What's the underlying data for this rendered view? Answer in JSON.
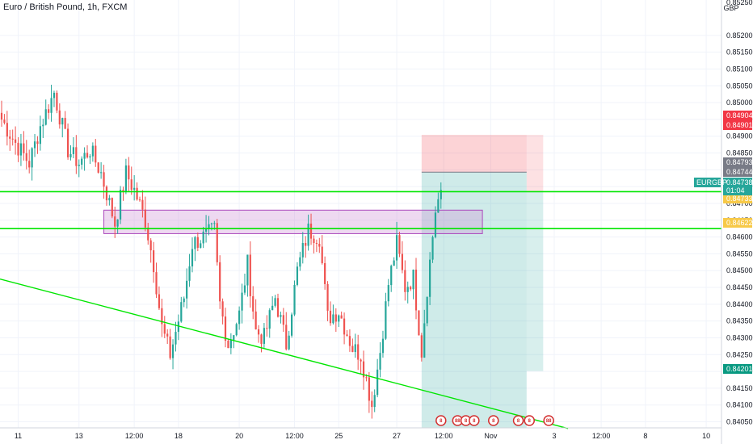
{
  "header": {
    "title": "Euro / British Pound, 1h, FXCM"
  },
  "price_axis": {
    "currency": "GBP",
    "top_label": "0.85250"
  },
  "symbol_tag": {
    "symbol": "EURGBP",
    "price": "0.84738",
    "countdown": "01:04"
  },
  "price_tags": [
    {
      "label": "0.84904",
      "color": "#f23645"
    },
    {
      "label": "0.84901",
      "color": "#f23645"
    },
    {
      "label": "0.84793",
      "color": "#787b86"
    },
    {
      "label": "0.84744",
      "color": "#787b86"
    },
    {
      "label": "0.84733",
      "color": "#f7c948"
    },
    {
      "label": "0.84622",
      "color": "#f7c948"
    },
    {
      "label": "0.84201",
      "color": "#089981"
    }
  ],
  "colors": {
    "up": "#26a69a",
    "down": "#ef5350",
    "level": "#00e600",
    "zone": "#ce93d8",
    "target": "#26a69a",
    "stop": "#f23645"
  },
  "drawings": {
    "horizontal_levels": [
      0.84735,
      0.84625
    ],
    "zone": {
      "from": 0.8461,
      "to": 0.8468
    },
    "trendline": {
      "from_price": 0.84475,
      "to_price": 0.8403
    },
    "position": {
      "entry": 0.84793,
      "stop": 0.84904,
      "target": 0.84201
    }
  },
  "events": [
    {
      "label": "8",
      "kind": "flag"
    },
    {
      "label": "88",
      "kind": "flag"
    },
    {
      "label": "8",
      "kind": "flag"
    },
    {
      "label": "8",
      "kind": "flag"
    },
    {
      "label": "8",
      "kind": "flag"
    },
    {
      "label": "8",
      "kind": "flag"
    },
    {
      "label": "8",
      "kind": "flag"
    },
    {
      "label": "88",
      "kind": "flag"
    }
  ],
  "chart_data": {
    "type": "candlestick",
    "title": "Euro / British Pound, 1h, FXCM",
    "ylim": [
      0.84,
      0.8525
    ],
    "y_ticks": [
      0.8405,
      0.841,
      0.8415,
      0.842,
      0.8425,
      0.843,
      0.8435,
      0.844,
      0.8445,
      0.845,
      0.8455,
      0.846,
      0.8465,
      0.847,
      0.8475,
      0.848,
      0.8485,
      0.849,
      0.8495,
      0.85,
      0.8505,
      0.851,
      0.8515,
      0.852
    ],
    "y_tick_labels": [
      "0.84050",
      "0.84100",
      "0.84150",
      "0.84200",
      "0.84250",
      "0.84300",
      "0.84350",
      "0.84400",
      "0.84450",
      "0.84500",
      "0.84550",
      "0.84600",
      "0.84650",
      "0.84700",
      "0.84750",
      "0.84800",
      "0.84850",
      "0.84900",
      "0.84950",
      "0.85000",
      "0.85050",
      "0.85100",
      "0.85150",
      "0.85200"
    ],
    "x_tick_labels": [
      "11",
      "13",
      "12:00",
      "18",
      "20",
      "12:00",
      "25",
      "27",
      "12:00",
      "Nov",
      "3",
      "12:00",
      "8",
      "10"
    ],
    "x_tick_bars": [
      6,
      28,
      48,
      64,
      86,
      106,
      122,
      143,
      160,
      177,
      200,
      217,
      233,
      255
    ],
    "bar_count": 160,
    "anchors": [
      [
        0,
        0.8495
      ],
      [
        5,
        0.8488
      ],
      [
        10,
        0.8482
      ],
      [
        14,
        0.8493
      ],
      [
        19,
        0.8503
      ],
      [
        24,
        0.8486
      ],
      [
        28,
        0.8482
      ],
      [
        32,
        0.8486
      ],
      [
        36,
        0.8479
      ],
      [
        41,
        0.8464
      ],
      [
        45,
        0.8479
      ],
      [
        48,
        0.8474
      ],
      [
        52,
        0.8465
      ],
      [
        55,
        0.8452
      ],
      [
        58,
        0.8433
      ],
      [
        61,
        0.8425
      ],
      [
        66,
        0.8442
      ],
      [
        69,
        0.8458
      ],
      [
        73,
        0.846
      ],
      [
        77,
        0.8462
      ],
      [
        79,
        0.844
      ],
      [
        82,
        0.8428
      ],
      [
        86,
        0.8437
      ],
      [
        89,
        0.8452
      ],
      [
        92,
        0.8432
      ],
      [
        95,
        0.843
      ],
      [
        99,
        0.8442
      ],
      [
        103,
        0.8428
      ],
      [
        107,
        0.845
      ],
      [
        111,
        0.8462
      ],
      [
        115,
        0.846
      ],
      [
        118,
        0.8436
      ],
      [
        122,
        0.8438
      ],
      [
        127,
        0.8427
      ],
      [
        130,
        0.8425
      ],
      [
        134,
        0.841
      ],
      [
        137,
        0.8426
      ],
      [
        140,
        0.8446
      ],
      [
        143,
        0.8458
      ],
      [
        146,
        0.8445
      ],
      [
        149,
        0.8448
      ],
      [
        152,
        0.8426
      ],
      [
        154,
        0.8445
      ],
      [
        157,
        0.8468
      ],
      [
        159,
        0.8474
      ]
    ]
  }
}
